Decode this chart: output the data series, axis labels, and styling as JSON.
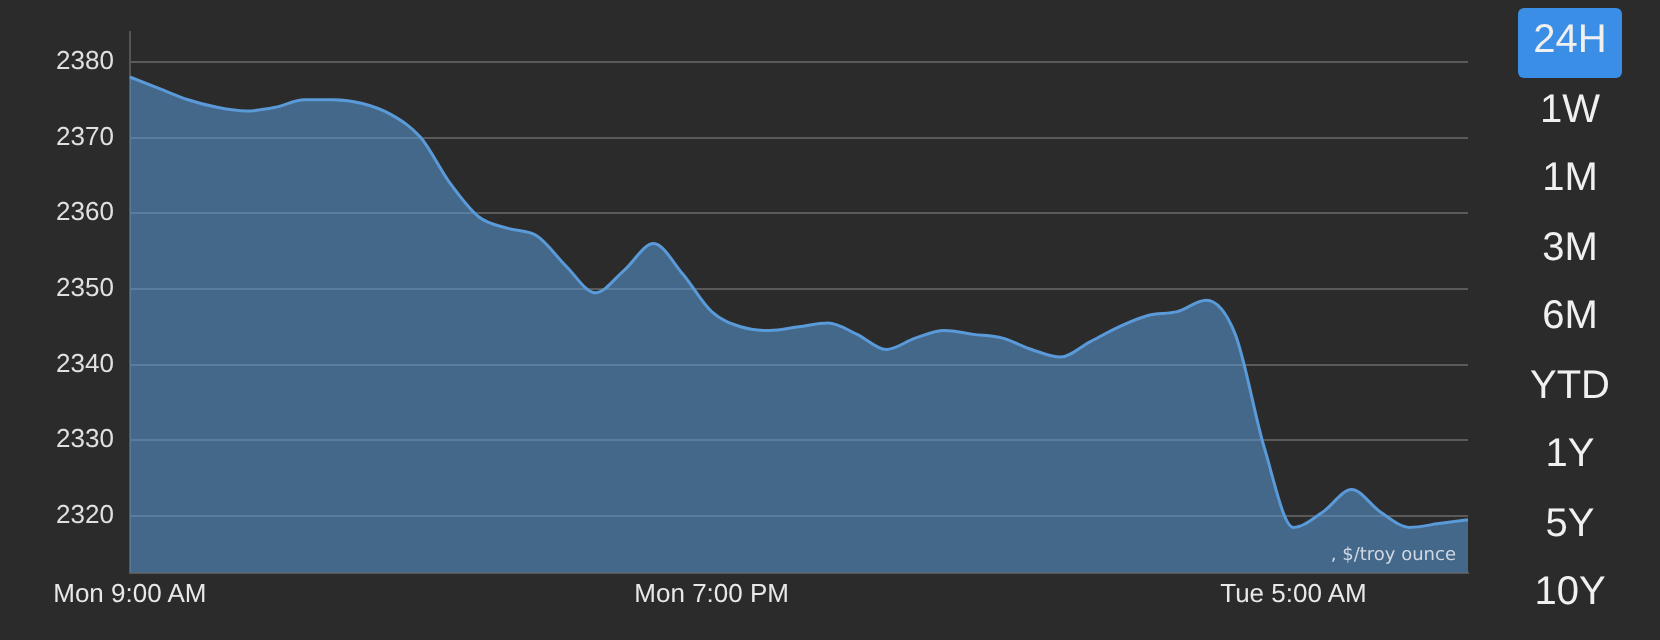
{
  "chart_data": {
    "type": "area",
    "categories": [
      "Mon 9:00 AM",
      null,
      null,
      null,
      null,
      null,
      null,
      null,
      null,
      null,
      null,
      null,
      null,
      null,
      null,
      null,
      null,
      null,
      null,
      null,
      "Mon 7:00 PM",
      null,
      null,
      null,
      null,
      null,
      null,
      null,
      null,
      null,
      null,
      null,
      null,
      null,
      null,
      null,
      null,
      null,
      null,
      null,
      "Tue 5:00 AM",
      null,
      null,
      null,
      null,
      null,
      null
    ],
    "series": [
      {
        "color": "#5a9ad8",
        "values": [
          2378,
          2376.5,
          2375,
          2374,
          2373.5,
          2374,
          2375,
          2375,
          2374.5,
          2373,
          2370,
          2364,
          2359.5,
          2358,
          2357,
          2353,
          2349.5,
          2352.5,
          2356,
          2352,
          2347,
          2345,
          2344.5,
          2345,
          2345.5,
          2344,
          2342,
          2343.5,
          2344.5,
          2344,
          2343.5,
          2342,
          2341,
          2343,
          2345,
          2346.5,
          2347,
          2348.5,
          2344,
          2329,
          2318.5,
          2320.5,
          2323.5,
          2320.5,
          2318.5,
          2319,
          2319.5
        ]
      }
    ],
    "ylim": [
      2312.5,
      2384
    ],
    "yticks": [
      2320,
      2330,
      2340,
      2350,
      2360,
      2370,
      2380
    ],
    "grid": "y",
    "annotations": [
      ", $/troy ounce",
      "24H",
      "1W",
      "1M",
      "3M",
      "6M",
      "YTD",
      "1Y",
      "5Y",
      "10Y"
    ]
  }
}
